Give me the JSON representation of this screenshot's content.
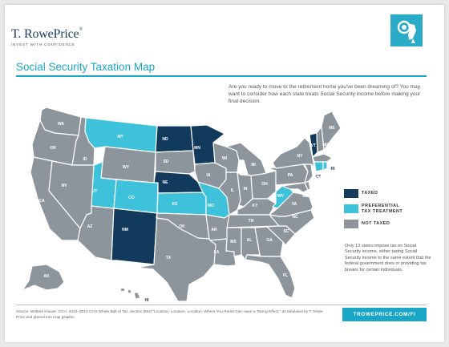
{
  "brand": {
    "name": "T. RowePrice",
    "reg": "®",
    "tagline": "INVEST WITH CONFIDENCE",
    "logo": "bighorn-ram-logo-icon"
  },
  "title": "Social Security Taxation Map",
  "intro": "Are you ready to move to the retirement home you've been dreaming of? You may want to consider how each state treats Social Security income before making your final decision.",
  "colors": {
    "taxed": "#123a5d",
    "preferential": "#3ec1da",
    "not_taxed": "#8d959c",
    "accent": "#1aa6c6",
    "brand": "#1d3d63"
  },
  "legend": [
    {
      "label": "TAXED",
      "color": "#123a5d"
    },
    {
      "label": "PREFERENTIAL TAX TREATMENT",
      "color": "#3ec1da"
    },
    {
      "label": "NOT TAXED",
      "color": "#8d959c"
    }
  ],
  "states": [
    {
      "code": "WA",
      "category": "not_taxed"
    },
    {
      "code": "OR",
      "category": "not_taxed"
    },
    {
      "code": "CA",
      "category": "not_taxed"
    },
    {
      "code": "ID",
      "category": "not_taxed"
    },
    {
      "code": "NV",
      "category": "not_taxed"
    },
    {
      "code": "AZ",
      "category": "not_taxed"
    },
    {
      "code": "MT",
      "category": "preferential"
    },
    {
      "code": "WY",
      "category": "not_taxed"
    },
    {
      "code": "UT",
      "category": "preferential"
    },
    {
      "code": "CO",
      "category": "preferential"
    },
    {
      "code": "NM",
      "category": "taxed"
    },
    {
      "code": "ND",
      "category": "taxed"
    },
    {
      "code": "SD",
      "category": "not_taxed"
    },
    {
      "code": "NE",
      "category": "taxed"
    },
    {
      "code": "KS",
      "category": "preferential"
    },
    {
      "code": "OK",
      "category": "not_taxed"
    },
    {
      "code": "TX",
      "category": "not_taxed"
    },
    {
      "code": "MN",
      "category": "taxed"
    },
    {
      "code": "IA",
      "category": "not_taxed"
    },
    {
      "code": "MO",
      "category": "preferential"
    },
    {
      "code": "AR",
      "category": "not_taxed"
    },
    {
      "code": "LA",
      "category": "not_taxed"
    },
    {
      "code": "WI",
      "category": "not_taxed"
    },
    {
      "code": "IL",
      "category": "not_taxed"
    },
    {
      "code": "MI",
      "category": "not_taxed"
    },
    {
      "code": "IN",
      "category": "not_taxed"
    },
    {
      "code": "OH",
      "category": "not_taxed"
    },
    {
      "code": "KY",
      "category": "not_taxed"
    },
    {
      "code": "TN",
      "category": "not_taxed"
    },
    {
      "code": "MS",
      "category": "not_taxed"
    },
    {
      "code": "AL",
      "category": "not_taxed"
    },
    {
      "code": "GA",
      "category": "not_taxed"
    },
    {
      "code": "FL",
      "category": "not_taxed"
    },
    {
      "code": "SC",
      "category": "not_taxed"
    },
    {
      "code": "NC",
      "category": "not_taxed"
    },
    {
      "code": "VA",
      "category": "not_taxed"
    },
    {
      "code": "WV",
      "category": "preferential"
    },
    {
      "code": "PA",
      "category": "not_taxed"
    },
    {
      "code": "NY",
      "category": "not_taxed"
    },
    {
      "code": "VT",
      "category": "taxed"
    },
    {
      "code": "NH",
      "category": "not_taxed"
    },
    {
      "code": "ME",
      "category": "not_taxed"
    },
    {
      "code": "MA",
      "category": "not_taxed"
    },
    {
      "code": "CT",
      "category": "preferential"
    },
    {
      "code": "RI",
      "category": "preferential"
    },
    {
      "code": "NJ",
      "category": "not_taxed"
    },
    {
      "code": "DE",
      "category": "not_taxed"
    },
    {
      "code": "MD",
      "category": "not_taxed"
    },
    {
      "code": "AK",
      "category": "not_taxed"
    },
    {
      "code": "HI",
      "category": "not_taxed"
    }
  ],
  "note": "Only 13 states impose tax on Social Security income, either taxing Social Security income to the same extent that the federal government does or providing tax breaks for certain individuals.",
  "source": "Source: Wolters Kluwer, CCH. 2013–2013 CCH Whole Ball of Tax, section titled \"Location, Location, Location: Where You Retire Can Have a Taxing Effect,\" as tabulated by T. Rowe Price and placed into map graphic.",
  "url": "TROWEPRICE.COM/FI"
}
